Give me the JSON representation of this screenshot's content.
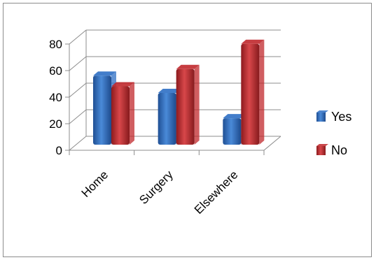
{
  "chart_data": {
    "type": "bar",
    "categories": [
      "Home",
      "Surgery",
      "Elsewhere"
    ],
    "series": [
      {
        "name": "Yes",
        "values": [
          53,
          40,
          21
        ],
        "color": "#2e6fc4"
      },
      {
        "name": "No",
        "values": [
          45,
          58,
          77
        ],
        "color": "#c0282c"
      }
    ],
    "yticks": [
      0,
      20,
      40,
      60,
      80
    ],
    "ylim": [
      0,
      80
    ],
    "title": "",
    "xlabel": "",
    "ylabel": "",
    "grid": true,
    "legend_position": "right",
    "style": "3d-clustered-column"
  }
}
